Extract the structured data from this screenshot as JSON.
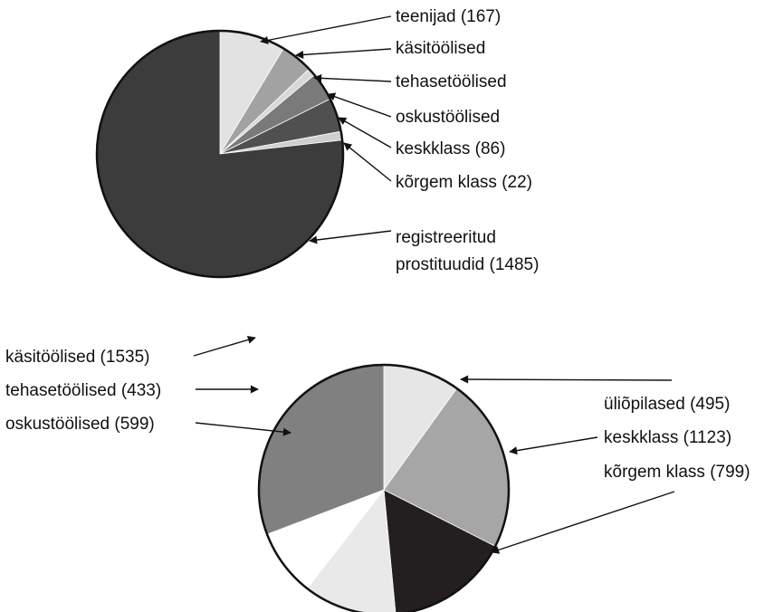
{
  "chart_data": [
    {
      "type": "pie",
      "title": "",
      "slices": [
        {
          "label": "teenijad (167)",
          "value": 167,
          "color": "#e2e2e2"
        },
        {
          "label": "käsitöölised",
          "value": 82,
          "color": "#a2a2a2"
        },
        {
          "label": "tehasetöölised",
          "value": 20,
          "color": "#d8d8d8"
        },
        {
          "label": "oskustöölised",
          "value": 72,
          "color": "#7a7a7a"
        },
        {
          "label": "keskklass (86)",
          "value": 86,
          "color": "#505050"
        },
        {
          "label": "kõrgem klass (22)",
          "value": 22,
          "color": "#cfcfcf"
        },
        {
          "label": "registreeritud prostituudid (1485)",
          "value": 1485,
          "color": "#3c3c3c"
        }
      ],
      "labels": [
        {
          "lines": [
            "teenijad (167)"
          ]
        },
        {
          "lines": [
            "käsitöölised"
          ]
        },
        {
          "lines": [
            "tehasetöölised"
          ]
        },
        {
          "lines": [
            "oskustöölised"
          ]
        },
        {
          "lines": [
            "keskklass (86)"
          ]
        },
        {
          "lines": [
            "kõrgem klass (22)"
          ]
        },
        {
          "lines": [
            "registreeritud",
            "prostituudid (1485)"
          ]
        }
      ]
    },
    {
      "type": "pie",
      "title": "",
      "slices": [
        {
          "label": "üliõpilased (495)",
          "value": 495,
          "color": "#e6e6e6"
        },
        {
          "label": "keskklass (1123)",
          "value": 1123,
          "color": "#a6a6a6"
        },
        {
          "label": "kõrgem klass (799)",
          "value": 799,
          "color": "#231f20"
        },
        {
          "label": "oskustöölised (599)",
          "value": 599,
          "color": "#e9e9e9"
        },
        {
          "label": "tehasetöölised (433)",
          "value": 433,
          "color": "#ffffff"
        },
        {
          "label": "käsitöölised (1535)",
          "value": 1535,
          "color": "#808080"
        }
      ],
      "labels": [
        {
          "lines": [
            "üliõpilased (495)"
          ]
        },
        {
          "lines": [
            "keskklass (1123)"
          ]
        },
        {
          "lines": [
            "kõrgem klass (799)"
          ]
        },
        {
          "lines": [
            "oskustöölised (599)"
          ]
        },
        {
          "lines": [
            "tehasetöölised (433)"
          ]
        },
        {
          "lines": [
            "käsitöölised (1535)"
          ]
        }
      ]
    }
  ]
}
